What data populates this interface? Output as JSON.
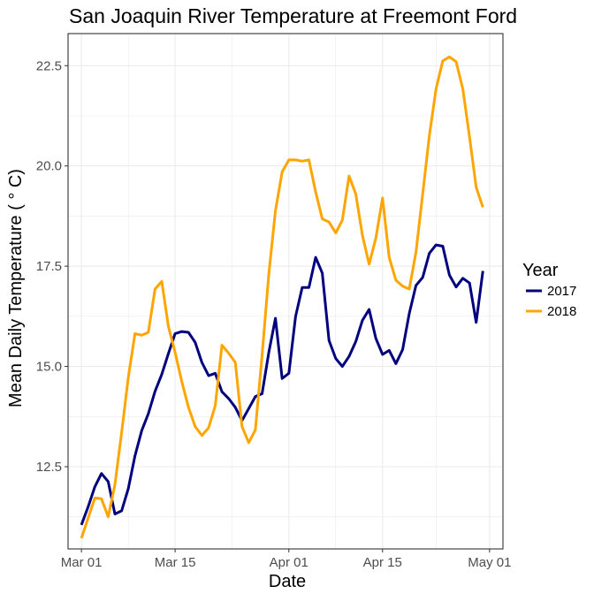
{
  "chart_data": {
    "type": "line",
    "title": "San Joaquin River Temperature at Freemont Ford",
    "xlabel": "Date",
    "ylabel": "Mean Daily Temperature ( ° C)",
    "xlim": [
      "2017-02-27",
      "2017-05-03"
    ],
    "ylim": [
      10.45,
      23.3
    ],
    "grid": true,
    "legend_position": "right",
    "legend_title": "Year",
    "x_ticks": [
      {
        "date": "2017-03-01",
        "label": "Mar 01"
      },
      {
        "date": "2017-03-15",
        "label": "Mar 15"
      },
      {
        "date": "2017-04-01",
        "label": "Apr 01"
      },
      {
        "date": "2017-04-15",
        "label": "Apr 15"
      },
      {
        "date": "2017-05-01",
        "label": "May 01"
      }
    ],
    "y_ticks": [
      {
        "value": 12.5,
        "label": "12.5"
      },
      {
        "value": 15.0,
        "label": "15.0"
      },
      {
        "value": 17.5,
        "label": "17.5"
      },
      {
        "value": 20.0,
        "label": "20.0"
      },
      {
        "value": 22.5,
        "label": "22.5"
      }
    ],
    "series": [
      {
        "name": "2017",
        "color": "#00007f",
        "x": [
          "2017-03-01",
          "2017-03-02",
          "2017-03-03",
          "2017-03-04",
          "2017-03-05",
          "2017-03-06",
          "2017-03-07",
          "2017-03-08",
          "2017-03-09",
          "2017-03-10",
          "2017-03-11",
          "2017-03-12",
          "2017-03-13",
          "2017-03-14",
          "2017-03-15",
          "2017-03-16",
          "2017-03-17",
          "2017-03-18",
          "2017-03-19",
          "2017-03-20",
          "2017-03-21",
          "2017-03-22",
          "2017-03-23",
          "2017-03-24",
          "2017-03-25",
          "2017-03-26",
          "2017-03-27",
          "2017-03-28",
          "2017-03-29",
          "2017-03-30",
          "2017-03-31",
          "2017-04-01",
          "2017-04-02",
          "2017-04-03",
          "2017-04-04",
          "2017-04-05",
          "2017-04-06",
          "2017-04-07",
          "2017-04-08",
          "2017-04-09",
          "2017-04-10",
          "2017-04-11",
          "2017-04-12",
          "2017-04-13",
          "2017-04-14",
          "2017-04-15",
          "2017-04-16",
          "2017-04-17",
          "2017-04-18",
          "2017-04-19",
          "2017-04-20",
          "2017-04-21",
          "2017-04-22",
          "2017-04-23",
          "2017-04-24",
          "2017-04-25",
          "2017-04-26",
          "2017-04-27",
          "2017-04-28",
          "2017-04-29",
          "2017-04-30"
        ],
        "y": [
          11.05,
          11.5,
          12.0,
          12.33,
          12.13,
          11.32,
          11.4,
          11.95,
          12.77,
          13.4,
          13.82,
          14.38,
          14.8,
          15.32,
          15.82,
          15.87,
          15.85,
          15.6,
          15.1,
          14.77,
          14.83,
          14.37,
          14.2,
          13.98,
          13.65,
          13.95,
          14.25,
          14.32,
          15.35,
          16.2,
          14.7,
          14.83,
          16.25,
          16.97,
          16.97,
          17.72,
          17.33,
          15.65,
          15.2,
          15.0,
          15.25,
          15.62,
          16.15,
          16.42,
          15.7,
          15.3,
          15.4,
          15.07,
          15.42,
          16.32,
          17.02,
          17.22,
          17.82,
          18.03,
          18.0,
          17.28,
          16.98,
          17.2,
          17.08,
          16.1,
          17.38
        ]
      },
      {
        "name": "2018",
        "color": "#ffa500",
        "x": [
          "2017-03-01",
          "2017-03-02",
          "2017-03-03",
          "2017-03-04",
          "2017-03-05",
          "2017-03-06",
          "2017-03-07",
          "2017-03-08",
          "2017-03-09",
          "2017-03-10",
          "2017-03-11",
          "2017-03-12",
          "2017-03-13",
          "2017-03-14",
          "2017-03-15",
          "2017-03-16",
          "2017-03-17",
          "2017-03-18",
          "2017-03-19",
          "2017-03-20",
          "2017-03-21",
          "2017-03-22",
          "2017-03-23",
          "2017-03-24",
          "2017-03-25",
          "2017-03-26",
          "2017-03-27",
          "2017-03-28",
          "2017-03-29",
          "2017-03-30",
          "2017-03-31",
          "2017-04-01",
          "2017-04-02",
          "2017-04-03",
          "2017-04-04",
          "2017-04-05",
          "2017-04-06",
          "2017-04-07",
          "2017-04-08",
          "2017-04-09",
          "2017-04-10",
          "2017-04-11",
          "2017-04-12",
          "2017-04-13",
          "2017-04-14",
          "2017-04-15",
          "2017-04-16",
          "2017-04-17",
          "2017-04-18",
          "2017-04-19",
          "2017-04-20",
          "2017-04-21",
          "2017-04-22",
          "2017-04-23",
          "2017-04-24",
          "2017-04-25",
          "2017-04-26",
          "2017-04-27",
          "2017-04-28",
          "2017-04-29",
          "2017-04-30"
        ],
        "y": [
          10.72,
          11.22,
          11.72,
          11.7,
          11.25,
          12.05,
          13.35,
          14.72,
          15.82,
          15.78,
          15.85,
          16.93,
          17.12,
          16.0,
          15.35,
          14.62,
          13.98,
          13.5,
          13.28,
          13.47,
          14.02,
          15.53,
          15.33,
          15.1,
          13.5,
          13.1,
          13.42,
          15.28,
          17.3,
          18.88,
          19.85,
          20.15,
          20.15,
          20.12,
          20.15,
          19.35,
          18.68,
          18.6,
          18.33,
          18.65,
          19.75,
          19.3,
          18.27,
          17.55,
          18.2,
          19.2,
          17.72,
          17.15,
          17.0,
          16.93,
          17.85,
          19.3,
          20.75,
          21.92,
          22.62,
          22.72,
          22.6,
          21.92,
          20.72,
          19.47,
          18.97
        ]
      }
    ]
  }
}
